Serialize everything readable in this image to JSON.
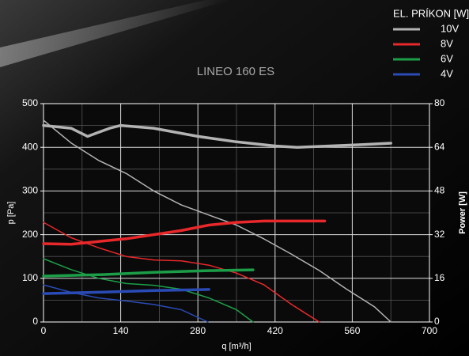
{
  "chart_data": {
    "type": "line",
    "title": "LINEO 160 ES",
    "legend_title": "EL. PRÍKON [W]",
    "x_label": "q [m³/h]",
    "y_label": "p [Pa]",
    "y2_label": "Power [W]",
    "xlim": [
      0,
      700
    ],
    "xticks": [
      0,
      140,
      280,
      420,
      560,
      700
    ],
    "ylim": [
      0,
      500
    ],
    "yticks": [
      0,
      100,
      200,
      300,
      400,
      500
    ],
    "y2lim": [
      0,
      80
    ],
    "y2ticks": [
      0,
      16,
      32,
      48,
      64,
      80
    ],
    "grid": true,
    "series": [
      {
        "name": "10V",
        "color": "#b3b3b3",
        "x": [
          0,
          50,
          100,
          150,
          200,
          250,
          300,
          350,
          400,
          450,
          500,
          550,
          600,
          630
        ],
        "values": [
          462,
          410,
          370,
          340,
          300,
          268,
          245,
          222,
          190,
          155,
          118,
          75,
          35,
          0
        ],
        "power": {
          "axis": "y2",
          "x": [
            0,
            50,
            80,
            120,
            140,
            200,
            280,
            350,
            420,
            460,
            520,
            580,
            630
          ],
          "values": [
            72,
            71,
            68,
            71,
            72,
            71,
            68,
            66,
            64.5,
            64,
            64.5,
            65,
            65.5
          ]
        }
      },
      {
        "name": "8V",
        "color": "#e8282b",
        "x": [
          0,
          50,
          100,
          150,
          200,
          250,
          300,
          350,
          400,
          450,
          500
        ],
        "values": [
          228,
          193,
          170,
          150,
          142,
          140,
          130,
          112,
          85,
          40,
          0
        ],
        "power": {
          "axis": "y2",
          "x": [
            0,
            50,
            100,
            150,
            200,
            250,
            300,
            350,
            400,
            510
          ],
          "values": [
            28.7,
            28.5,
            29.5,
            30.5,
            32,
            33.5,
            35.5,
            36.5,
            37,
            37
          ]
        }
      },
      {
        "name": "6V",
        "color": "#1c9e48",
        "x": [
          0,
          50,
          100,
          150,
          200,
          250,
          300,
          350,
          380
        ],
        "values": [
          145,
          120,
          100,
          88,
          84,
          75,
          55,
          28,
          0
        ],
        "power": {
          "axis": "y2",
          "x": [
            0,
            100,
            200,
            300,
            380
          ],
          "values": [
            16.8,
            17.3,
            18.2,
            18.8,
            19.1
          ]
        }
      },
      {
        "name": "4V",
        "color": "#2a4bb5",
        "x": [
          0,
          50,
          100,
          150,
          200,
          250,
          298
        ],
        "values": [
          85,
          68,
          55,
          48,
          40,
          28,
          0
        ],
        "power": {
          "axis": "y2",
          "x": [
            0,
            100,
            200,
            300
          ],
          "values": [
            10.4,
            10.9,
            11.5,
            11.9
          ]
        }
      }
    ]
  }
}
